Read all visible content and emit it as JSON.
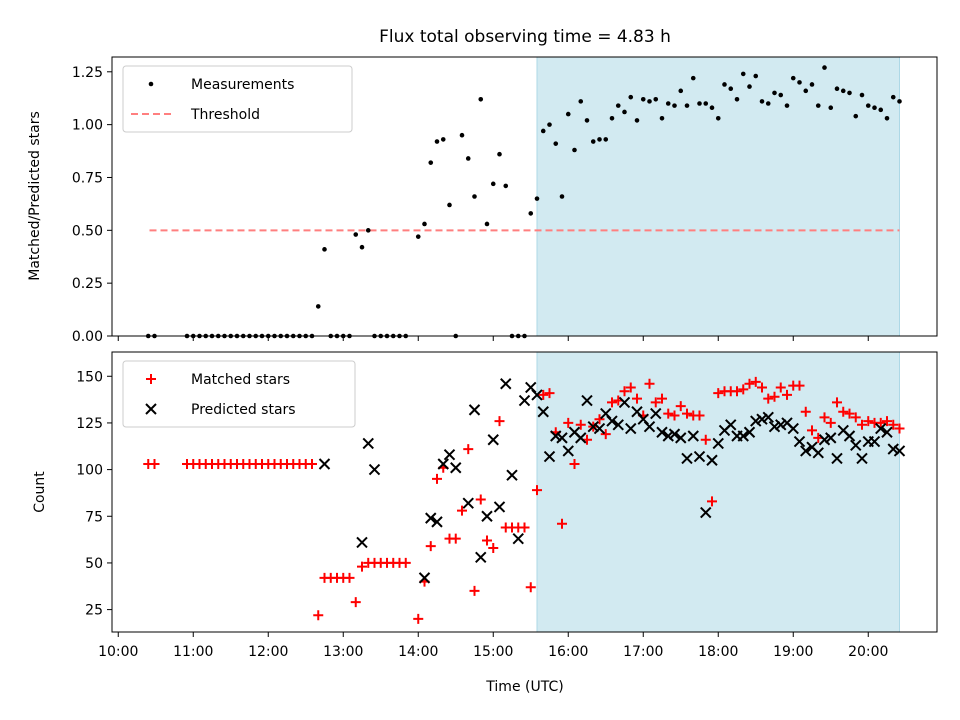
{
  "colors": {
    "shade": "#add8e6",
    "measurement": "#000000",
    "threshold": "#ff7f7f",
    "matched": "#ff0000",
    "predicted": "#000000"
  },
  "chart_data": [
    {
      "type": "scatter",
      "title": "Flux total observing time = 4.83 h",
      "xlabel": "",
      "ylabel": "Matched/Predicted stars",
      "xlim": [
        "09:55",
        "20:55"
      ],
      "ylim": [
        0,
        1.32
      ],
      "yticks": [
        "0.00",
        "0.25",
        "0.50",
        "0.75",
        "1.00",
        "1.25"
      ],
      "shaded_region": {
        "x_start": "15:35",
        "x_end": "20:25"
      },
      "legend": {
        "position": "top-left",
        "entries": [
          "Measurements",
          "Threshold"
        ]
      },
      "threshold": {
        "name": "Threshold",
        "y": 0.5,
        "x_start": "10:25",
        "x_end": "20:25"
      },
      "series": [
        {
          "name": "Measurements",
          "marker": "dot",
          "x": [
            "10:24",
            "10:29",
            "10:55",
            "11:00",
            "11:05",
            "11:10",
            "11:15",
            "11:20",
            "11:25",
            "11:30",
            "11:35",
            "11:40",
            "11:45",
            "11:50",
            "11:55",
            "12:00",
            "12:05",
            "12:10",
            "12:15",
            "12:20",
            "12:25",
            "12:30",
            "12:35",
            "12:40",
            "12:45",
            "12:50",
            "12:55",
            "13:00",
            "13:05",
            "13:10",
            "13:15",
            "13:20",
            "13:25",
            "13:30",
            "13:35",
            "13:40",
            "13:45",
            "13:50",
            "14:00",
            "14:05",
            "14:10",
            "14:15",
            "14:20",
            "14:25",
            "14:30",
            "14:35",
            "14:40",
            "14:45",
            "14:50",
            "14:55",
            "15:00",
            "15:05",
            "15:10",
            "15:15",
            "15:20",
            "15:25",
            "15:30",
            "15:35",
            "15:40",
            "15:45",
            "15:50",
            "15:55",
            "16:00",
            "16:05",
            "16:10",
            "16:15",
            "16:20",
            "16:25",
            "16:30",
            "16:35",
            "16:40",
            "16:45",
            "16:50",
            "16:55",
            "17:00",
            "17:05",
            "17:10",
            "17:15",
            "17:20",
            "17:25",
            "17:30",
            "17:35",
            "17:40",
            "17:45",
            "17:50",
            "17:55",
            "18:00",
            "18:05",
            "18:10",
            "18:15",
            "18:20",
            "18:25",
            "18:30",
            "18:35",
            "18:40",
            "18:45",
            "18:50",
            "18:55",
            "19:00",
            "19:05",
            "19:10",
            "19:15",
            "19:20",
            "19:25",
            "19:30",
            "19:35",
            "19:40",
            "19:45",
            "19:50",
            "19:55",
            "20:00",
            "20:05",
            "20:10",
            "20:15",
            "20:20",
            "20:25"
          ],
          "y": [
            0,
            0,
            0,
            0,
            0,
            0,
            0,
            0,
            0,
            0,
            0,
            0,
            0,
            0,
            0,
            0,
            0,
            0,
            0,
            0,
            0,
            0,
            0,
            0.14,
            0.41,
            0,
            0,
            0,
            0,
            0.48,
            0.42,
            0.5,
            0,
            0,
            0,
            0,
            0,
            0,
            0.47,
            0.53,
            0.82,
            0.92,
            0.93,
            0.62,
            0,
            0.95,
            0.84,
            0.66,
            1.12,
            0.53,
            0.72,
            0.86,
            0.71,
            0,
            0,
            0,
            0.58,
            0.65,
            0.97,
            1.0,
            0.91,
            0.66,
            1.05,
            0.88,
            1.11,
            1.02,
            0.92,
            0.93,
            0.93,
            1.03,
            1.09,
            1.06,
            1.13,
            1.02,
            1.12,
            1.11,
            1.12,
            1.03,
            1.1,
            1.09,
            1.16,
            1.09,
            1.22,
            1.1,
            1.1,
            1.08,
            1.03,
            1.19,
            1.17,
            1.12,
            1.24,
            1.18,
            1.23,
            1.11,
            1.1,
            1.15,
            1.14,
            1.09,
            1.22,
            1.2,
            1.16,
            1.19,
            1.09,
            1.27,
            1.08,
            1.17,
            1.16,
            1.15,
            1.04,
            1.14,
            1.09,
            1.08,
            1.07,
            1.03,
            1.13,
            1.11
          ]
        }
      ]
    },
    {
      "type": "scatter",
      "title": "",
      "xlabel": "Time (UTC)",
      "ylabel": "Count",
      "xlim": [
        "09:55",
        "20:55"
      ],
      "ylim": [
        13,
        163
      ],
      "yticks": [
        "25",
        "50",
        "75",
        "100",
        "125",
        "150"
      ],
      "xticks": [
        "10:00",
        "11:00",
        "12:00",
        "13:00",
        "14:00",
        "15:00",
        "16:00",
        "17:00",
        "18:00",
        "19:00",
        "20:00"
      ],
      "shaded_region": {
        "x_start": "15:35",
        "x_end": "20:25"
      },
      "legend": {
        "position": "top-left",
        "entries": [
          "Matched stars",
          "Predicted stars"
        ]
      },
      "series": [
        {
          "name": "Matched stars",
          "marker": "plus",
          "x": [
            "10:24",
            "10:29",
            "10:55",
            "11:00",
            "11:05",
            "11:10",
            "11:15",
            "11:20",
            "11:25",
            "11:30",
            "11:35",
            "11:40",
            "11:45",
            "11:50",
            "11:55",
            "12:00",
            "12:05",
            "12:10",
            "12:15",
            "12:20",
            "12:25",
            "12:30",
            "12:35",
            "12:40",
            "12:45",
            "12:50",
            "12:55",
            "13:00",
            "13:05",
            "13:10",
            "13:15",
            "13:20",
            "13:25",
            "13:30",
            "13:35",
            "13:40",
            "13:45",
            "13:50",
            "14:00",
            "14:05",
            "14:10",
            "14:15",
            "14:20",
            "14:25",
            "14:30",
            "14:35",
            "14:40",
            "14:45",
            "14:50",
            "14:55",
            "15:00",
            "15:05",
            "15:10",
            "15:15",
            "15:20",
            "15:25",
            "15:30",
            "15:35",
            "15:40",
            "15:45",
            "15:50",
            "15:55",
            "16:00",
            "16:05",
            "16:10",
            "16:15",
            "16:20",
            "16:25",
            "16:30",
            "16:35",
            "16:40",
            "16:45",
            "16:50",
            "16:55",
            "17:00",
            "17:05",
            "17:10",
            "17:15",
            "17:20",
            "17:25",
            "17:30",
            "17:35",
            "17:40",
            "17:45",
            "17:50",
            "17:55",
            "18:00",
            "18:05",
            "18:10",
            "18:15",
            "18:20",
            "18:25",
            "18:30",
            "18:35",
            "18:40",
            "18:45",
            "18:50",
            "18:55",
            "19:00",
            "19:05",
            "19:10",
            "19:15",
            "19:20",
            "19:25",
            "19:30",
            "19:35",
            "19:40",
            "19:45",
            "19:50",
            "19:55",
            "20:00",
            "20:05",
            "20:10",
            "20:15",
            "20:20",
            "20:25"
          ],
          "y": [
            103,
            103,
            103,
            103,
            103,
            103,
            103,
            103,
            103,
            103,
            103,
            103,
            103,
            103,
            103,
            103,
            103,
            103,
            103,
            103,
            103,
            103,
            103,
            22,
            42,
            42,
            42,
            42,
            42,
            29,
            48,
            50,
            50,
            50,
            50,
            50,
            50,
            50,
            20,
            40,
            59,
            95,
            101,
            63,
            63,
            78,
            111,
            35,
            84,
            62,
            58,
            126,
            69,
            69,
            69,
            69,
            37,
            89,
            140,
            141,
            120,
            71,
            125,
            103,
            124,
            116,
            123,
            127,
            119,
            136,
            137,
            142,
            144,
            138,
            129,
            146,
            136,
            138,
            130,
            129,
            134,
            130,
            129,
            129,
            116,
            83,
            141,
            142,
            142,
            142,
            143,
            146,
            147,
            144,
            138,
            139,
            144,
            140,
            145,
            145,
            131,
            121,
            117,
            128,
            125,
            136,
            131,
            130,
            128,
            124,
            126,
            125,
            125,
            126,
            124,
            122
          ]
        },
        {
          "name": "Predicted stars",
          "marker": "x",
          "x": [
            "12:45",
            "13:15",
            "13:20",
            "13:25",
            "14:05",
            "14:10",
            "14:15",
            "14:20",
            "14:25",
            "14:30",
            "14:40",
            "14:45",
            "14:50",
            "14:55",
            "15:00",
            "15:05",
            "15:10",
            "15:15",
            "15:20",
            "15:25",
            "15:30",
            "15:35",
            "15:40",
            "15:45",
            "15:50",
            "15:55",
            "16:00",
            "16:05",
            "16:10",
            "16:15",
            "16:20",
            "16:25",
            "16:30",
            "16:35",
            "16:40",
            "16:45",
            "16:50",
            "16:55",
            "17:00",
            "17:05",
            "17:10",
            "17:15",
            "17:20",
            "17:25",
            "17:30",
            "17:35",
            "17:40",
            "17:45",
            "17:50",
            "17:55",
            "18:00",
            "18:05",
            "18:10",
            "18:15",
            "18:20",
            "18:25",
            "18:30",
            "18:35",
            "18:40",
            "18:45",
            "18:50",
            "18:55",
            "19:00",
            "19:05",
            "19:10",
            "19:15",
            "19:20",
            "19:25",
            "19:30",
            "19:35",
            "19:40",
            "19:45",
            "19:50",
            "19:55",
            "20:00",
            "20:05",
            "20:10",
            "20:15",
            "20:20",
            "20:25"
          ],
          "y": [
            103,
            61,
            114,
            100,
            42,
            74,
            72,
            103,
            108,
            101,
            82,
            132,
            53,
            75,
            116,
            80,
            146,
            97,
            63,
            137,
            144,
            140,
            131,
            107,
            118,
            117,
            110,
            120,
            117,
            137,
            123,
            122,
            130,
            126,
            124,
            136,
            122,
            131,
            127,
            123,
            130,
            120,
            118,
            119,
            117,
            106,
            118,
            107,
            77,
            105,
            114,
            121,
            124,
            118,
            118,
            120,
            126,
            127,
            128,
            123,
            124,
            125,
            122,
            115,
            110,
            112,
            109,
            116,
            117,
            106,
            121,
            118,
            113,
            106,
            115,
            115,
            122,
            120,
            111,
            110
          ]
        }
      ]
    }
  ]
}
